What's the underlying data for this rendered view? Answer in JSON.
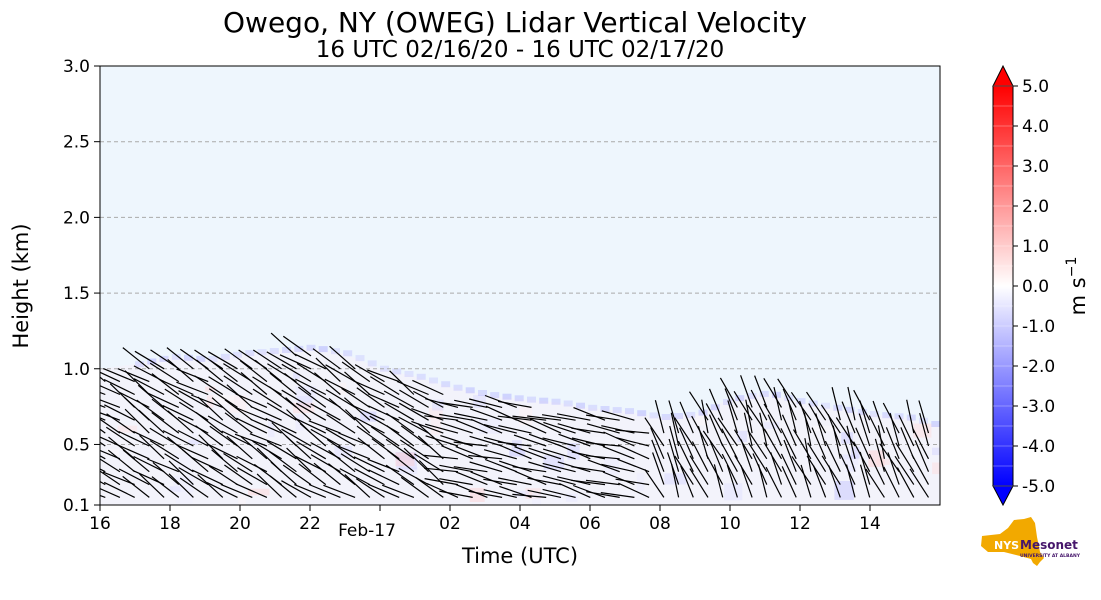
{
  "chart_data": {
    "type": "heatmap",
    "title": "Owego, NY (OWEG) Lidar Vertical Velocity",
    "subtitle": "16 UTC 02/16/20 - 16 UTC 02/17/20",
    "xlabel": "Time (UTC)",
    "ylabel": "Height (km)",
    "xlim": [
      0,
      24
    ],
    "ylim": [
      0.1,
      3.0
    ],
    "x_ticks": [
      {
        "value": 0,
        "label": "16"
      },
      {
        "value": 2,
        "label": "18"
      },
      {
        "value": 4,
        "label": "20"
      },
      {
        "value": 6,
        "label": "22"
      },
      {
        "value": 8,
        "label": "Feb-17"
      },
      {
        "value": 10,
        "label": "02"
      },
      {
        "value": 12,
        "label": "04"
      },
      {
        "value": 14,
        "label": "06"
      },
      {
        "value": 16,
        "label": "08"
      },
      {
        "value": 18,
        "label": "10"
      },
      {
        "value": 20,
        "label": "12"
      },
      {
        "value": 22,
        "label": "14"
      }
    ],
    "y_ticks": [
      {
        "value": 0.1,
        "label": "0.1"
      },
      {
        "value": 0.5,
        "label": "0.5"
      },
      {
        "value": 1.0,
        "label": "1.0"
      },
      {
        "value": 1.5,
        "label": "1.5"
      },
      {
        "value": 2.0,
        "label": "2.0"
      },
      {
        "value": 2.5,
        "label": "2.5"
      },
      {
        "value": 3.0,
        "label": "3.0"
      }
    ],
    "grid_lines_y": [
      0.5,
      1.0,
      1.5,
      2.0,
      2.5
    ],
    "background_value": -0.25,
    "data_top_km": [
      [
        0,
        1.0
      ],
      [
        1,
        1.03
      ],
      [
        2,
        1.08
      ],
      [
        3,
        1.06
      ],
      [
        4,
        1.1
      ],
      [
        5,
        1.12
      ],
      [
        6,
        1.14
      ],
      [
        7,
        1.1
      ],
      [
        8,
        1.0
      ],
      [
        9,
        0.95
      ],
      [
        10,
        0.88
      ],
      [
        11,
        0.83
      ],
      [
        12,
        0.8
      ],
      [
        13,
        0.78
      ],
      [
        14,
        0.74
      ],
      [
        15,
        0.72
      ],
      [
        16,
        0.68
      ],
      [
        17,
        0.7
      ],
      [
        18,
        0.8
      ],
      [
        19,
        0.84
      ],
      [
        20,
        0.78
      ],
      [
        21,
        0.74
      ],
      [
        22,
        0.7
      ],
      [
        23,
        0.68
      ],
      [
        24,
        0.62
      ]
    ],
    "colorbar": {
      "label": "m s",
      "label_exponent": "−1",
      "vmin": -5.0,
      "vmax": 5.0,
      "extend": "both",
      "colormap": "bwr",
      "ticks": [
        {
          "value": 5.0,
          "label": "5.0"
        },
        {
          "value": 4.0,
          "label": "4.0"
        },
        {
          "value": 3.0,
          "label": "3.0"
        },
        {
          "value": 2.0,
          "label": "2.0"
        },
        {
          "value": 1.0,
          "label": "1.0"
        },
        {
          "value": 0.0,
          "label": "0.0"
        },
        {
          "value": -1.0,
          "label": "-1.0"
        },
        {
          "value": -2.0,
          "label": "-2.0"
        },
        {
          "value": -3.0,
          "label": "-3.0"
        },
        {
          "value": -4.0,
          "label": "-4.0"
        },
        {
          "value": -5.0,
          "label": "-5.0"
        }
      ]
    },
    "overlay": "wind barbs"
  },
  "logo": {
    "brand": "NYS",
    "name": "Mesonet",
    "tagline": "UNIVERSITY AT ALBANY",
    "brand_color": "#f2a900",
    "name_color": "#46166b"
  }
}
